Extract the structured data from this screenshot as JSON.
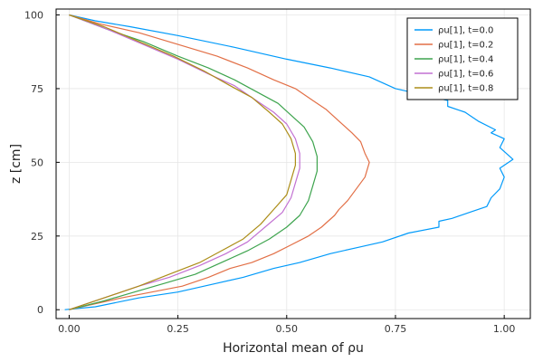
{
  "chart_data": {
    "type": "line",
    "title": "",
    "xlabel": "Horizontal mean of ρu",
    "ylabel": "z [cm]",
    "xlim": [
      -0.03,
      1.06
    ],
    "ylim": [
      -3,
      102
    ],
    "xticks": [
      0.0,
      0.25,
      0.5,
      0.75,
      1.0
    ],
    "xtick_labels": [
      "0.00",
      "0.25",
      "0.50",
      "0.75",
      "1.00"
    ],
    "yticks": [
      0,
      25,
      50,
      75,
      100
    ],
    "ytick_labels": [
      "0",
      "25",
      "50",
      "75",
      "100"
    ],
    "grid": true,
    "legend_position": "top-right",
    "series": [
      {
        "name": "ρu[1], t=0.0",
        "color": "#009AFA",
        "points": [
          [
            -0.01,
            0
          ],
          [
            0.06,
            1
          ],
          [
            0.16,
            4
          ],
          [
            0.25,
            6
          ],
          [
            0.34,
            9
          ],
          [
            0.4,
            11
          ],
          [
            0.47,
            14
          ],
          [
            0.53,
            16
          ],
          [
            0.6,
            19
          ],
          [
            0.66,
            21
          ],
          [
            0.72,
            23
          ],
          [
            0.78,
            26
          ],
          [
            0.85,
            28
          ],
          [
            0.85,
            30
          ],
          [
            0.88,
            31
          ],
          [
            0.92,
            33
          ],
          [
            0.96,
            35
          ],
          [
            0.97,
            38
          ],
          [
            0.99,
            41
          ],
          [
            1.0,
            45
          ],
          [
            0.99,
            48
          ],
          [
            1.02,
            51
          ],
          [
            0.99,
            55
          ],
          [
            1.0,
            58
          ],
          [
            0.97,
            60
          ],
          [
            0.98,
            61
          ],
          [
            0.94,
            64
          ],
          [
            0.91,
            67
          ],
          [
            0.87,
            69
          ],
          [
            0.87,
            71
          ],
          [
            0.84,
            72
          ],
          [
            0.75,
            75
          ],
          [
            0.69,
            79
          ],
          [
            0.6,
            82
          ],
          [
            0.5,
            85
          ],
          [
            0.38,
            89
          ],
          [
            0.25,
            93
          ],
          [
            0.14,
            96
          ],
          [
            0.06,
            98
          ],
          [
            0.0,
            100
          ]
        ]
      },
      {
        "name": "ρu[1], t=0.2",
        "color": "#E26F46",
        "points": [
          [
            0.0,
            0
          ],
          [
            0.06,
            2
          ],
          [
            0.12,
            4
          ],
          [
            0.19,
            6
          ],
          [
            0.26,
            8
          ],
          [
            0.32,
            11
          ],
          [
            0.37,
            14
          ],
          [
            0.42,
            16
          ],
          [
            0.47,
            19
          ],
          [
            0.51,
            22
          ],
          [
            0.55,
            25
          ],
          [
            0.58,
            28
          ],
          [
            0.61,
            32
          ],
          [
            0.62,
            34
          ],
          [
            0.64,
            37
          ],
          [
            0.66,
            41
          ],
          [
            0.68,
            45
          ],
          [
            0.69,
            50
          ],
          [
            0.68,
            53
          ],
          [
            0.67,
            57
          ],
          [
            0.65,
            60
          ],
          [
            0.62,
            64
          ],
          [
            0.59,
            68
          ],
          [
            0.56,
            71
          ],
          [
            0.52,
            75
          ],
          [
            0.47,
            78
          ],
          [
            0.41,
            82
          ],
          [
            0.34,
            86
          ],
          [
            0.25,
            90
          ],
          [
            0.16,
            94
          ],
          [
            0.07,
            97
          ],
          [
            0.0,
            100
          ]
        ]
      },
      {
        "name": "ρu[1], t=0.4",
        "color": "#3EA44E",
        "points": [
          [
            0.0,
            0
          ],
          [
            0.08,
            3
          ],
          [
            0.15,
            6
          ],
          [
            0.22,
            9
          ],
          [
            0.29,
            12
          ],
          [
            0.35,
            16
          ],
          [
            0.41,
            20
          ],
          [
            0.46,
            24
          ],
          [
            0.5,
            28
          ],
          [
            0.53,
            32
          ],
          [
            0.55,
            37
          ],
          [
            0.56,
            42
          ],
          [
            0.57,
            47
          ],
          [
            0.57,
            52
          ],
          [
            0.56,
            57
          ],
          [
            0.54,
            62
          ],
          [
            0.51,
            66
          ],
          [
            0.48,
            70
          ],
          [
            0.43,
            74
          ],
          [
            0.38,
            78
          ],
          [
            0.32,
            82
          ],
          [
            0.25,
            86
          ],
          [
            0.17,
            91
          ],
          [
            0.09,
            95
          ],
          [
            0.0,
            100
          ]
        ]
      },
      {
        "name": "ρu[1], t=0.6",
        "color": "#C271D2",
        "points": [
          [
            0.0,
            0
          ],
          [
            0.08,
            4
          ],
          [
            0.16,
            8
          ],
          [
            0.23,
            11
          ],
          [
            0.3,
            15
          ],
          [
            0.36,
            19
          ],
          [
            0.41,
            23
          ],
          [
            0.45,
            28
          ],
          [
            0.49,
            33
          ],
          [
            0.51,
            38
          ],
          [
            0.52,
            43
          ],
          [
            0.53,
            48
          ],
          [
            0.53,
            53
          ],
          [
            0.52,
            58
          ],
          [
            0.5,
            63
          ],
          [
            0.47,
            67
          ],
          [
            0.43,
            71
          ],
          [
            0.38,
            76
          ],
          [
            0.32,
            80
          ],
          [
            0.25,
            85
          ],
          [
            0.17,
            90
          ],
          [
            0.09,
            95
          ],
          [
            0.0,
            100
          ]
        ]
      },
      {
        "name": "ρu[1], t=0.8",
        "color": "#AC8D18",
        "points": [
          [
            0.0,
            0
          ],
          [
            0.08,
            4
          ],
          [
            0.16,
            8
          ],
          [
            0.23,
            12
          ],
          [
            0.3,
            16
          ],
          [
            0.35,
            20
          ],
          [
            0.4,
            24
          ],
          [
            0.44,
            29
          ],
          [
            0.47,
            34
          ],
          [
            0.5,
            39
          ],
          [
            0.51,
            44
          ],
          [
            0.52,
            49
          ],
          [
            0.52,
            53
          ],
          [
            0.51,
            58
          ],
          [
            0.49,
            63
          ],
          [
            0.46,
            67
          ],
          [
            0.42,
            72
          ],
          [
            0.37,
            76
          ],
          [
            0.31,
            81
          ],
          [
            0.24,
            86
          ],
          [
            0.16,
            91
          ],
          [
            0.08,
            96
          ],
          [
            0.0,
            100
          ]
        ]
      }
    ]
  }
}
